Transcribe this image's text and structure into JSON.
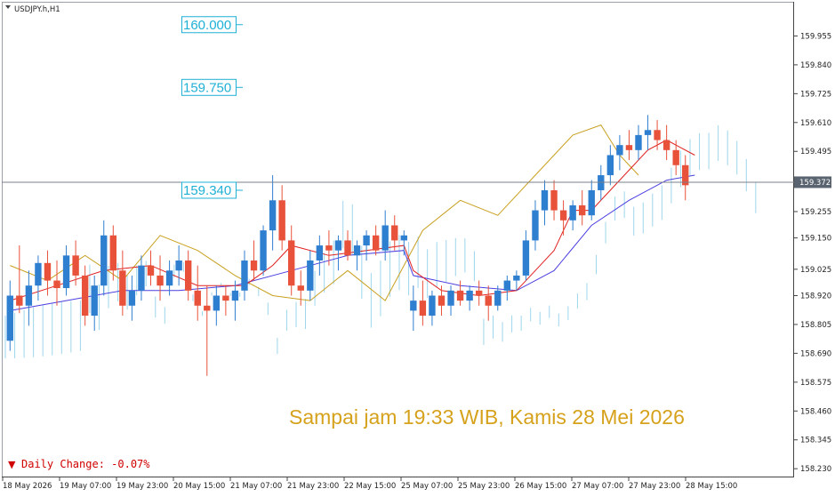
{
  "window": {
    "symbol_title": "USDJPY.h,H1"
  },
  "annotation": {
    "caption": "Sampai jam 19:33 WIB, Kamis 28 Mei 2026"
  },
  "daily_change": {
    "arrow": "▼",
    "text": "Daily Change: -0.07%"
  },
  "colors": {
    "bull_candle": "#2f7fd1",
    "bear_candle": "#e8513a",
    "tenkan": "#e02020",
    "kijun": "#4b3fe0",
    "chikou": "#c8a020",
    "cloud_bull": "#9dd6ec",
    "cloud_bear": "#f0b0a8",
    "level_label": "#1fb0d6",
    "current_price_bg": "#5a6470",
    "caption": "#d6a21c",
    "daily_change": "#d00000"
  },
  "chart_data": {
    "type": "candlestick",
    "title": "USDJPY.h,H1",
    "yaxis_ticks": [
      "159.955",
      "159.840",
      "159.725",
      "159.610",
      "159.495",
      "159.372",
      "159.255",
      "159.150",
      "159.025",
      "158.920",
      "158.805",
      "158.690",
      "158.575",
      "158.460",
      "158.345",
      "158.230"
    ],
    "ylim": [
      158.22,
      160.07
    ],
    "xaxis_ticks": [
      "18 May 2026",
      "19 May 07:00",
      "19 May 23:00",
      "20 May 15:00",
      "21 May 07:00",
      "21 May 23:00",
      "22 May 15:00",
      "25 May 07:00",
      "25 May 23:00",
      "26 May 15:00",
      "27 May 07:00",
      "27 May 23:00",
      "28 May 15:00"
    ],
    "current_price": "159.372",
    "price_levels": [
      {
        "label": "160.000",
        "value": 160.0
      },
      {
        "label": "159.750",
        "value": 159.75
      },
      {
        "label": "159.340",
        "value": 159.34
      }
    ],
    "ohlc": [
      [
        158.74,
        158.98,
        158.7,
        158.92
      ],
      [
        158.92,
        159.12,
        158.85,
        158.88
      ],
      [
        158.88,
        159.02,
        158.8,
        158.96
      ],
      [
        158.96,
        159.08,
        158.9,
        159.05
      ],
      [
        159.05,
        159.1,
        158.92,
        158.98
      ],
      [
        158.98,
        159.06,
        158.88,
        158.95
      ],
      [
        158.95,
        159.12,
        158.92,
        159.08
      ],
      [
        159.08,
        159.14,
        158.96,
        159.0
      ],
      [
        159.0,
        159.04,
        158.8,
        158.84
      ],
      [
        158.84,
        159.0,
        158.78,
        158.96
      ],
      [
        158.96,
        159.22,
        158.92,
        159.16
      ],
      [
        159.16,
        159.2,
        158.98,
        159.02
      ],
      [
        159.02,
        159.1,
        158.84,
        158.88
      ],
      [
        158.88,
        159.0,
        158.82,
        158.94
      ],
      [
        158.94,
        159.08,
        158.9,
        159.04
      ],
      [
        159.04,
        159.1,
        158.96,
        159.0
      ],
      [
        159.0,
        159.08,
        158.9,
        158.96
      ],
      [
        158.96,
        159.06,
        158.92,
        159.02
      ],
      [
        159.02,
        159.12,
        158.96,
        159.06
      ],
      [
        159.06,
        159.1,
        158.9,
        158.94
      ],
      [
        158.94,
        159.04,
        158.82,
        158.88
      ],
      [
        158.88,
        158.96,
        158.6,
        158.86
      ],
      [
        158.86,
        158.96,
        158.8,
        158.92
      ],
      [
        158.92,
        158.96,
        158.84,
        158.9
      ],
      [
        158.9,
        158.98,
        158.82,
        158.94
      ],
      [
        158.94,
        159.1,
        158.9,
        159.06
      ],
      [
        159.06,
        159.14,
        158.98,
        159.02
      ],
      [
        159.02,
        159.2,
        159.0,
        159.18
      ],
      [
        159.18,
        159.4,
        159.1,
        159.3
      ],
      [
        159.3,
        159.36,
        159.1,
        159.14
      ],
      [
        159.14,
        159.2,
        158.92,
        158.96
      ],
      [
        158.96,
        159.02,
        158.88,
        158.94
      ],
      [
        158.94,
        159.1,
        158.9,
        159.06
      ],
      [
        159.06,
        159.16,
        159.0,
        159.12
      ],
      [
        159.12,
        159.18,
        159.04,
        159.1
      ],
      [
        159.1,
        159.16,
        159.02,
        159.14
      ],
      [
        159.14,
        159.18,
        159.06,
        159.08
      ],
      [
        159.08,
        159.14,
        159.02,
        159.12
      ],
      [
        159.12,
        159.18,
        159.06,
        159.16
      ],
      [
        159.16,
        159.2,
        159.08,
        159.1
      ],
      [
        159.1,
        159.26,
        159.06,
        159.2
      ],
      [
        159.2,
        159.24,
        159.1,
        159.14
      ],
      [
        159.14,
        159.18,
        159.08,
        159.16
      ],
      [
        158.86,
        158.96,
        158.78,
        158.9
      ],
      [
        158.9,
        158.98,
        158.8,
        158.84
      ],
      [
        158.84,
        158.94,
        158.8,
        158.92
      ],
      [
        158.92,
        158.96,
        158.84,
        158.88
      ],
      [
        158.88,
        158.96,
        158.84,
        158.94
      ],
      [
        158.94,
        158.98,
        158.88,
        158.9
      ],
      [
        158.9,
        158.96,
        158.86,
        158.94
      ],
      [
        158.94,
        158.98,
        158.88,
        158.92
      ],
      [
        158.92,
        158.96,
        158.82,
        158.88
      ],
      [
        158.88,
        158.96,
        158.86,
        158.94
      ],
      [
        158.94,
        159.0,
        158.9,
        158.98
      ],
      [
        158.98,
        159.02,
        158.94,
        159.0
      ],
      [
        159.0,
        159.18,
        158.98,
        159.14
      ],
      [
        159.14,
        159.3,
        159.1,
        159.26
      ],
      [
        159.26,
        159.38,
        159.2,
        159.34
      ],
      [
        159.34,
        159.38,
        159.22,
        159.26
      ],
      [
        159.26,
        159.3,
        159.16,
        159.22
      ],
      [
        159.22,
        159.3,
        159.18,
        159.28
      ],
      [
        159.28,
        159.34,
        159.2,
        159.24
      ],
      [
        159.24,
        159.38,
        159.22,
        159.34
      ],
      [
        159.34,
        159.44,
        159.3,
        159.4
      ],
      [
        159.4,
        159.52,
        159.36,
        159.48
      ],
      [
        159.48,
        159.56,
        159.42,
        159.52
      ],
      [
        159.52,
        159.58,
        159.46,
        159.5
      ],
      [
        159.5,
        159.6,
        159.46,
        159.56
      ],
      [
        159.56,
        159.64,
        159.5,
        159.58
      ],
      [
        159.58,
        159.62,
        159.5,
        159.54
      ],
      [
        159.54,
        159.6,
        159.46,
        159.5
      ],
      [
        159.5,
        159.54,
        159.4,
        159.44
      ],
      [
        159.44,
        159.48,
        159.3,
        159.36
      ]
    ],
    "tenkan": [
      [
        0,
        158.9
      ],
      [
        5,
        158.96
      ],
      [
        10,
        159.02
      ],
      [
        15,
        159.04
      ],
      [
        20,
        158.96
      ],
      [
        25,
        158.96
      ],
      [
        28,
        159.04
      ],
      [
        30,
        159.12
      ],
      [
        34,
        159.08
      ],
      [
        38,
        159.1
      ],
      [
        42,
        159.12
      ],
      [
        43,
        159.02
      ],
      [
        46,
        158.94
      ],
      [
        50,
        158.92
      ],
      [
        54,
        158.94
      ],
      [
        56,
        159.02
      ],
      [
        58,
        159.1
      ],
      [
        60,
        159.26
      ],
      [
        62,
        159.26
      ],
      [
        64,
        159.34
      ],
      [
        66,
        159.42
      ],
      [
        68,
        159.5
      ],
      [
        70,
        159.54
      ],
      [
        73,
        159.48
      ]
    ],
    "kijun": [
      [
        0,
        158.86
      ],
      [
        6,
        158.9
      ],
      [
        12,
        158.94
      ],
      [
        18,
        158.94
      ],
      [
        24,
        158.96
      ],
      [
        30,
        159.02
      ],
      [
        36,
        159.08
      ],
      [
        42,
        159.1
      ],
      [
        43,
        159.0
      ],
      [
        48,
        158.96
      ],
      [
        54,
        158.94
      ],
      [
        58,
        159.02
      ],
      [
        62,
        159.2
      ],
      [
        66,
        159.3
      ],
      [
        70,
        159.38
      ],
      [
        73,
        159.4
      ]
    ],
    "chikou": [
      [
        0,
        159.04
      ],
      [
        4,
        158.98
      ],
      [
        8,
        159.08
      ],
      [
        12,
        158.98
      ],
      [
        16,
        159.16
      ],
      [
        20,
        159.1
      ],
      [
        24,
        159.0
      ],
      [
        28,
        158.92
      ],
      [
        32,
        158.9
      ],
      [
        36,
        159.02
      ],
      [
        40,
        158.9
      ],
      [
        44,
        159.18
      ],
      [
        48,
        159.3
      ],
      [
        52,
        159.24
      ],
      [
        56,
        159.4
      ],
      [
        60,
        159.56
      ],
      [
        63,
        159.6
      ],
      [
        65,
        159.48
      ],
      [
        67,
        159.4
      ]
    ]
  }
}
